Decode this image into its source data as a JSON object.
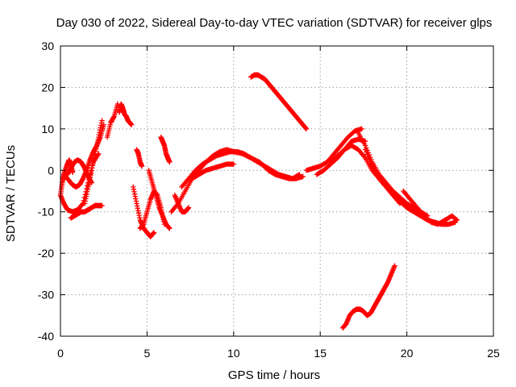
{
  "chart_data": {
    "type": "scatter",
    "title": "Day 030 of 2022, Sidereal Day-to-day VTEC variation (SDTVAR) for receiver glps",
    "xlabel": "GPS time / hours",
    "ylabel": "SDTVAR / TECUs",
    "xlim": [
      0,
      25
    ],
    "ylim": [
      -40,
      30
    ],
    "xticks": [
      0,
      5,
      10,
      15,
      20,
      25
    ],
    "yticks": [
      -40,
      -30,
      -20,
      -10,
      0,
      10,
      20,
      30
    ],
    "grid": true,
    "marker": "+",
    "color": "#ff0000",
    "series": [
      {
        "name": "s1",
        "x": [
          0.0,
          0.1,
          0.2,
          0.35,
          0.5,
          0.6,
          0.7
        ],
        "y": [
          -6,
          -3,
          -1,
          1,
          2.5,
          1.5,
          -0.5
        ]
      },
      {
        "name": "s2",
        "x": [
          0.0,
          0.2,
          0.4,
          0.7,
          1.0,
          1.3,
          1.6,
          1.9,
          2.2
        ],
        "y": [
          -6,
          -8,
          -9.5,
          -10,
          -9.5,
          -8,
          -3,
          2,
          4
        ]
      },
      {
        "name": "s3",
        "x": [
          0.6,
          0.8,
          1.0,
          1.2,
          1.4,
          1.6,
          1.8,
          2.0,
          2.2,
          2.4
        ],
        "y": [
          -11.5,
          -11,
          -10.5,
          -10,
          -10,
          -9.5,
          -9,
          -8.5,
          -8.5,
          -8.5
        ]
      },
      {
        "name": "s4",
        "x": [
          0.3,
          0.5,
          0.7,
          0.9,
          1.1,
          1.3,
          1.5,
          1.7,
          1.9,
          2.1,
          2.3,
          2.5
        ],
        "y": [
          -1.5,
          -2.5,
          -3.5,
          -4,
          -3.5,
          -2,
          0,
          2.5,
          4.5,
          6,
          8,
          11
        ]
      },
      {
        "name": "s5",
        "x": [
          0.4,
          0.6,
          0.8,
          1.0,
          1.2,
          1.4,
          1.6,
          1.8
        ],
        "y": [
          -1,
          0.5,
          2,
          2.5,
          2,
          0.5,
          -1.5,
          -3
        ]
      },
      {
        "name": "s6",
        "x": [
          1.4,
          1.6,
          1.8,
          2.0,
          2.2,
          2.4
        ],
        "y": [
          -8,
          -4,
          0,
          4,
          8,
          12
        ]
      },
      {
        "name": "s7",
        "x": [
          2.7,
          2.9,
          3.1,
          3.3
        ],
        "y": [
          8,
          11.5,
          13,
          16
        ]
      },
      {
        "name": "s8",
        "x": [
          3.4,
          3.5,
          3.6,
          3.7,
          3.8,
          3.9,
          4.0,
          4.1
        ],
        "y": [
          14,
          16,
          15,
          13.5,
          13,
          12,
          11.5,
          11
        ]
      },
      {
        "name": "s9",
        "x": [
          4.4,
          4.5,
          4.6,
          4.7
        ],
        "y": [
          5,
          4,
          2,
          1
        ]
      },
      {
        "name": "s10",
        "x": [
          4.2,
          4.4,
          4.6,
          4.8,
          5.0,
          5.2,
          5.4
        ],
        "y": [
          -4,
          -8,
          -12,
          -14,
          -15,
          -16,
          -15
        ]
      },
      {
        "name": "s11",
        "x": [
          4.6,
          4.8,
          5.0,
          5.2,
          5.4,
          5.6,
          5.8,
          6.0
        ],
        "y": [
          -14,
          -13,
          -10,
          -7,
          -5,
          -6,
          -9,
          -13
        ]
      },
      {
        "name": "s12",
        "x": [
          5.1,
          5.3,
          5.5,
          5.7,
          5.9,
          6.1,
          6.3
        ],
        "y": [
          0,
          -3,
          -6,
          -9,
          -11,
          -13,
          -14
        ]
      },
      {
        "name": "s13",
        "x": [
          5.8,
          5.9,
          6.0,
          6.1,
          6.2,
          6.3
        ],
        "y": [
          8,
          7,
          6,
          4,
          3,
          2
        ]
      },
      {
        "name": "s14",
        "x": [
          6.6,
          6.8,
          7.0,
          7.2,
          7.4
        ],
        "y": [
          -6,
          -8,
          -10,
          -10,
          -9
        ]
      },
      {
        "name": "s15",
        "x": [
          6.4,
          6.8,
          7.2,
          7.6,
          8.0,
          8.4,
          8.8,
          9.2,
          9.6,
          10.0,
          10.5,
          11.0,
          11.5,
          12.0
        ],
        "y": [
          -10,
          -8,
          -5,
          -2,
          0,
          2,
          3.5,
          4.5,
          5,
          4.5,
          4,
          3,
          2,
          0
        ]
      },
      {
        "name": "s16",
        "x": [
          7.0,
          7.4,
          7.8,
          8.2,
          8.6,
          9.0,
          9.4,
          9.8,
          10.2,
          10.6,
          11.0,
          11.4,
          11.8,
          12.2,
          12.6,
          13.0,
          13.4,
          13.8
        ],
        "y": [
          -4,
          -2,
          0,
          1.5,
          2.5,
          3.5,
          4,
          4.5,
          4.5,
          4,
          3,
          2,
          1,
          0,
          -1,
          -1.5,
          -2,
          -1
        ]
      },
      {
        "name": "s17",
        "x": [
          7.6,
          8.0,
          8.4,
          8.8,
          9.2,
          9.6,
          10.0
        ],
        "y": [
          -2,
          -1,
          0,
          0.5,
          1,
          1.5,
          1.5
        ]
      },
      {
        "name": "s18",
        "x": [
          11.0,
          11.2,
          11.4,
          11.6,
          11.8,
          12.0,
          12.2,
          12.4,
          12.6,
          12.8,
          13.0,
          13.2,
          13.4,
          13.6,
          13.8,
          14.0,
          14.2
        ],
        "y": [
          22.5,
          23,
          23,
          22.5,
          22,
          21,
          20,
          19,
          18,
          17,
          16,
          15,
          14,
          13,
          12,
          11,
          10
        ]
      },
      {
        "name": "s19",
        "x": [
          12.0,
          12.4,
          12.8,
          13.2,
          13.6,
          14.0
        ],
        "y": [
          0,
          -1,
          -1.5,
          -2,
          -2,
          -1.5
        ]
      },
      {
        "name": "s20",
        "x": [
          14.2,
          14.6,
          15.0,
          15.4,
          15.8,
          16.2,
          16.6,
          17.0,
          17.4
        ],
        "y": [
          0,
          0.5,
          1,
          2,
          4,
          6,
          8,
          9.5,
          10
        ]
      },
      {
        "name": "s21",
        "x": [
          14.8,
          15.2,
          15.6,
          16.0,
          16.4,
          16.8,
          17.2,
          17.6
        ],
        "y": [
          -1,
          0,
          1.5,
          3,
          5,
          7,
          7.5,
          7
        ]
      },
      {
        "name": "s22",
        "x": [
          15.6,
          16.0,
          16.4,
          16.8,
          17.2,
          17.6,
          18.0,
          18.4,
          18.8,
          19.2,
          19.6
        ],
        "y": [
          2,
          3.5,
          5,
          6,
          5,
          3,
          0,
          -2,
          -4,
          -6,
          -8
        ]
      },
      {
        "name": "s23",
        "x": [
          17.2,
          17.6,
          18.0,
          18.4,
          18.8,
          19.2,
          19.6,
          20.0,
          20.4,
          20.8,
          21.2
        ],
        "y": [
          9,
          6,
          2,
          -1,
          -3,
          -5,
          -6.5,
          -8,
          -9,
          -10,
          -11
        ]
      },
      {
        "name": "s24",
        "x": [
          17.6,
          18.0,
          18.4,
          18.8,
          19.2,
          19.6,
          20.0,
          20.4,
          20.8,
          21.2,
          21.6,
          22.0,
          22.4,
          22.8
        ],
        "y": [
          5,
          1,
          -2,
          -4,
          -6,
          -7.5,
          -9,
          -10,
          -11,
          -12,
          -12.5,
          -13,
          -13,
          -12.5
        ]
      },
      {
        "name": "s25",
        "x": [
          19.8,
          20.2,
          20.6,
          21.0,
          21.4,
          21.8,
          22.2,
          22.6,
          22.9
        ],
        "y": [
          -5,
          -7,
          -9,
          -11,
          -12.5,
          -13,
          -12,
          -11,
          -12
        ]
      },
      {
        "name": "s26",
        "x": [
          16.3,
          16.5,
          16.7,
          16.9,
          17.1,
          17.3,
          17.5,
          17.7,
          17.9,
          18.1,
          18.3,
          18.5,
          18.7,
          18.9,
          19.1,
          19.3
        ],
        "y": [
          -38,
          -37,
          -35,
          -34,
          -33.5,
          -33.5,
          -34,
          -35,
          -34.5,
          -33,
          -31.5,
          -30,
          -28.5,
          -27,
          -25,
          -23
        ]
      }
    ]
  }
}
